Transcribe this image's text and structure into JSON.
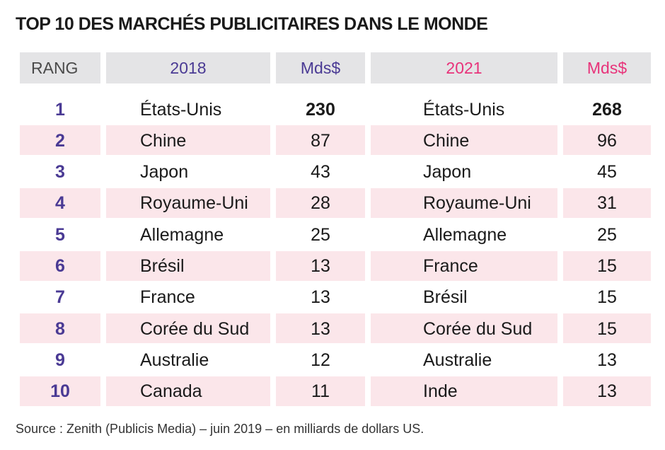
{
  "title": "TOP 10 DES MARCHÉS PUBLICITAIRES DANS LE MONDE",
  "source": "Source : Zenith (Publicis Media) – juin 2019 – en milliards de dollars US.",
  "colors": {
    "purple": "#4a3a94",
    "pink": "#e8337a",
    "row_band": "#fbe6ea",
    "header_bg": "#e4e4e6"
  },
  "chart_data": {
    "type": "table",
    "headers": {
      "rank": "RANG",
      "year1": "2018",
      "unit1": "Mds$",
      "year2": "2021",
      "unit2": "Mds$"
    },
    "rows": [
      {
        "rank": "1",
        "country_2018": "États-Unis",
        "value_2018": "230",
        "country_2021": "États-Unis",
        "value_2021": "268"
      },
      {
        "rank": "2",
        "country_2018": "Chine",
        "value_2018": "87",
        "country_2021": "Chine",
        "value_2021": "96"
      },
      {
        "rank": "3",
        "country_2018": "Japon",
        "value_2018": "43",
        "country_2021": "Japon",
        "value_2021": "45"
      },
      {
        "rank": "4",
        "country_2018": "Royaume-Uni",
        "value_2018": "28",
        "country_2021": "Royaume-Uni",
        "value_2021": "31"
      },
      {
        "rank": "5",
        "country_2018": "Allemagne",
        "value_2018": "25",
        "country_2021": "Allemagne",
        "value_2021": "25"
      },
      {
        "rank": "6",
        "country_2018": "Brésil",
        "value_2018": "13",
        "country_2021": "France",
        "value_2021": "15"
      },
      {
        "rank": "7",
        "country_2018": "France",
        "value_2018": "13",
        "country_2021": "Brésil",
        "value_2021": "15"
      },
      {
        "rank": "8",
        "country_2018": "Corée du Sud",
        "value_2018": "13",
        "country_2021": "Corée du Sud",
        "value_2021": "15"
      },
      {
        "rank": "9",
        "country_2018": "Australie",
        "value_2018": "12",
        "country_2021": "Australie",
        "value_2021": "13"
      },
      {
        "rank": "10",
        "country_2018": "Canada",
        "value_2018": "11",
        "country_2021": "Inde",
        "value_2021": "13"
      }
    ]
  }
}
